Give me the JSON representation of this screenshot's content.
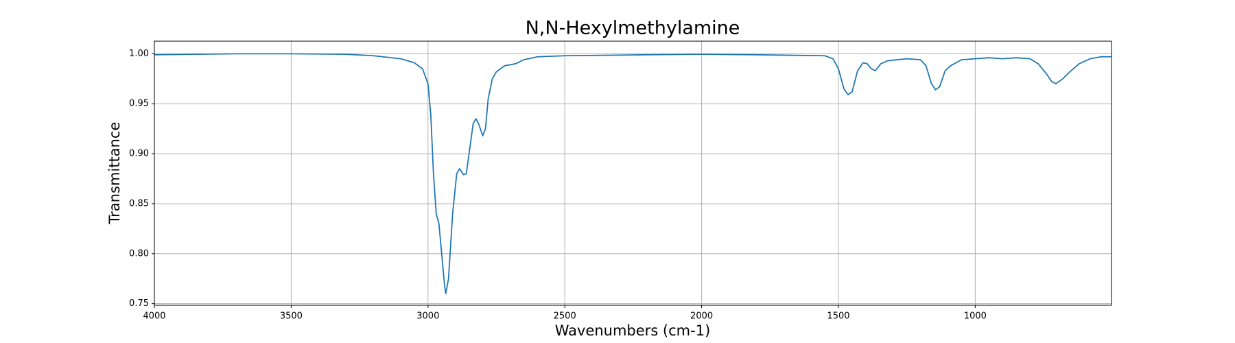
{
  "chart_data": {
    "type": "line",
    "title": "N,N-Hexylmethylamine",
    "x_label": "Wavenumbers (cm-1)",
    "y_label": "Transmittance",
    "x": [
      4000,
      3700,
      3500,
      3300,
      3200,
      3100,
      3050,
      3020,
      3000,
      2990,
      2980,
      2970,
      2960,
      2950,
      2940,
      2935,
      2925,
      2910,
      2895,
      2885,
      2870,
      2860,
      2850,
      2835,
      2825,
      2815,
      2800,
      2790,
      2780,
      2765,
      2750,
      2720,
      2680,
      2650,
      2600,
      2500,
      2200,
      2000,
      1800,
      1550,
      1520,
      1500,
      1480,
      1465,
      1450,
      1430,
      1410,
      1395,
      1380,
      1365,
      1345,
      1320,
      1250,
      1200,
      1180,
      1160,
      1145,
      1130,
      1110,
      1090,
      1050,
      1000,
      950,
      900,
      850,
      800,
      770,
      740,
      720,
      705,
      680,
      650,
      620,
      580,
      540,
      502
    ],
    "series": [
      {
        "name": "N,N-Hexylmethylamine",
        "color": "#1f77b4",
        "values": [
          0.999,
          1.0,
          1.0,
          0.9995,
          0.998,
          0.995,
          0.991,
          0.985,
          0.97,
          0.94,
          0.88,
          0.84,
          0.83,
          0.8,
          0.77,
          0.76,
          0.775,
          0.84,
          0.88,
          0.885,
          0.879,
          0.88,
          0.9,
          0.93,
          0.935,
          0.93,
          0.918,
          0.925,
          0.955,
          0.975,
          0.982,
          0.988,
          0.99,
          0.994,
          0.997,
          0.998,
          0.999,
          0.9995,
          0.999,
          0.998,
          0.995,
          0.985,
          0.965,
          0.959,
          0.962,
          0.983,
          0.991,
          0.99,
          0.985,
          0.983,
          0.99,
          0.993,
          0.995,
          0.994,
          0.988,
          0.97,
          0.964,
          0.967,
          0.983,
          0.988,
          0.994,
          0.995,
          0.996,
          0.995,
          0.996,
          0.995,
          0.99,
          0.98,
          0.972,
          0.97,
          0.975,
          0.983,
          0.99,
          0.995,
          0.997,
          0.997
        ]
      }
    ],
    "xlim": [
      4000,
      502
    ],
    "ylim": [
      0.7484,
      1.0126
    ],
    "xticks": [
      4000,
      3500,
      3000,
      2500,
      2000,
      1500,
      1000
    ],
    "yticks": [
      0.75,
      {
        "value": 0.8,
        "label": "0.80"
      },
      0.85,
      {
        "value": 0.9,
        "label": "0.90"
      },
      0.95,
      {
        "value": 1,
        "label": "1.00"
      }
    ],
    "grid": true
  }
}
